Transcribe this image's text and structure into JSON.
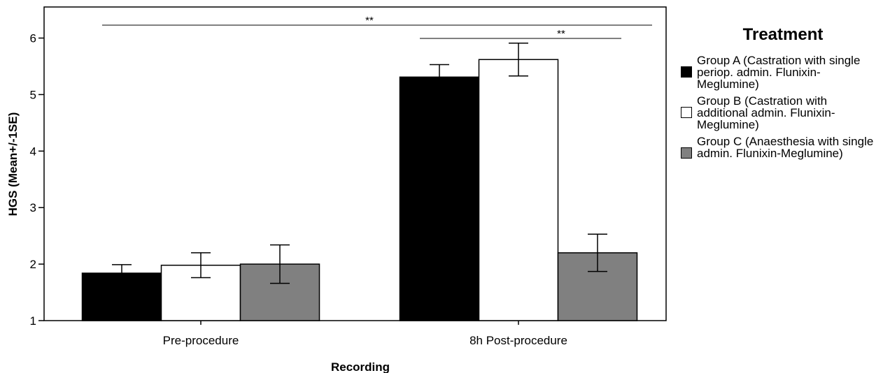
{
  "chart_data": {
    "type": "bar",
    "categories": [
      "Pre-procedure",
      "8h Post-procedure"
    ],
    "series": [
      {
        "name": "Group A (Castration with single periop. admin. Flunixin-Meglumine)",
        "color": "#000000",
        "values": [
          1.84,
          5.31
        ],
        "error": [
          0.15,
          0.22
        ]
      },
      {
        "name": "Group B (Castration with additional admin. Flunixin-Meglumine)",
        "color": "#ffffff",
        "values": [
          1.98,
          5.62
        ],
        "error": [
          0.22,
          0.29
        ]
      },
      {
        "name": "Group C (Anaesthesia with single admin. Flunixin-Meglumine)",
        "color": "#808080",
        "values": [
          2.0,
          2.2
        ],
        "error": [
          0.34,
          0.33
        ]
      }
    ],
    "xlabel": "Recording",
    "ylabel": "HGS (Mean+/-1SE)",
    "ylim": [
      1,
      6.55
    ],
    "yticks": [
      1,
      2,
      3,
      4,
      5,
      6
    ],
    "grid": false,
    "legend": {
      "title": "Treatment",
      "placement": "right"
    },
    "annotations": [
      {
        "text": "**",
        "spans": "Pre-procedure to 8h Post-procedure"
      },
      {
        "text": "**",
        "spans": "Group A to Group C at 8h Post-procedure"
      }
    ]
  }
}
